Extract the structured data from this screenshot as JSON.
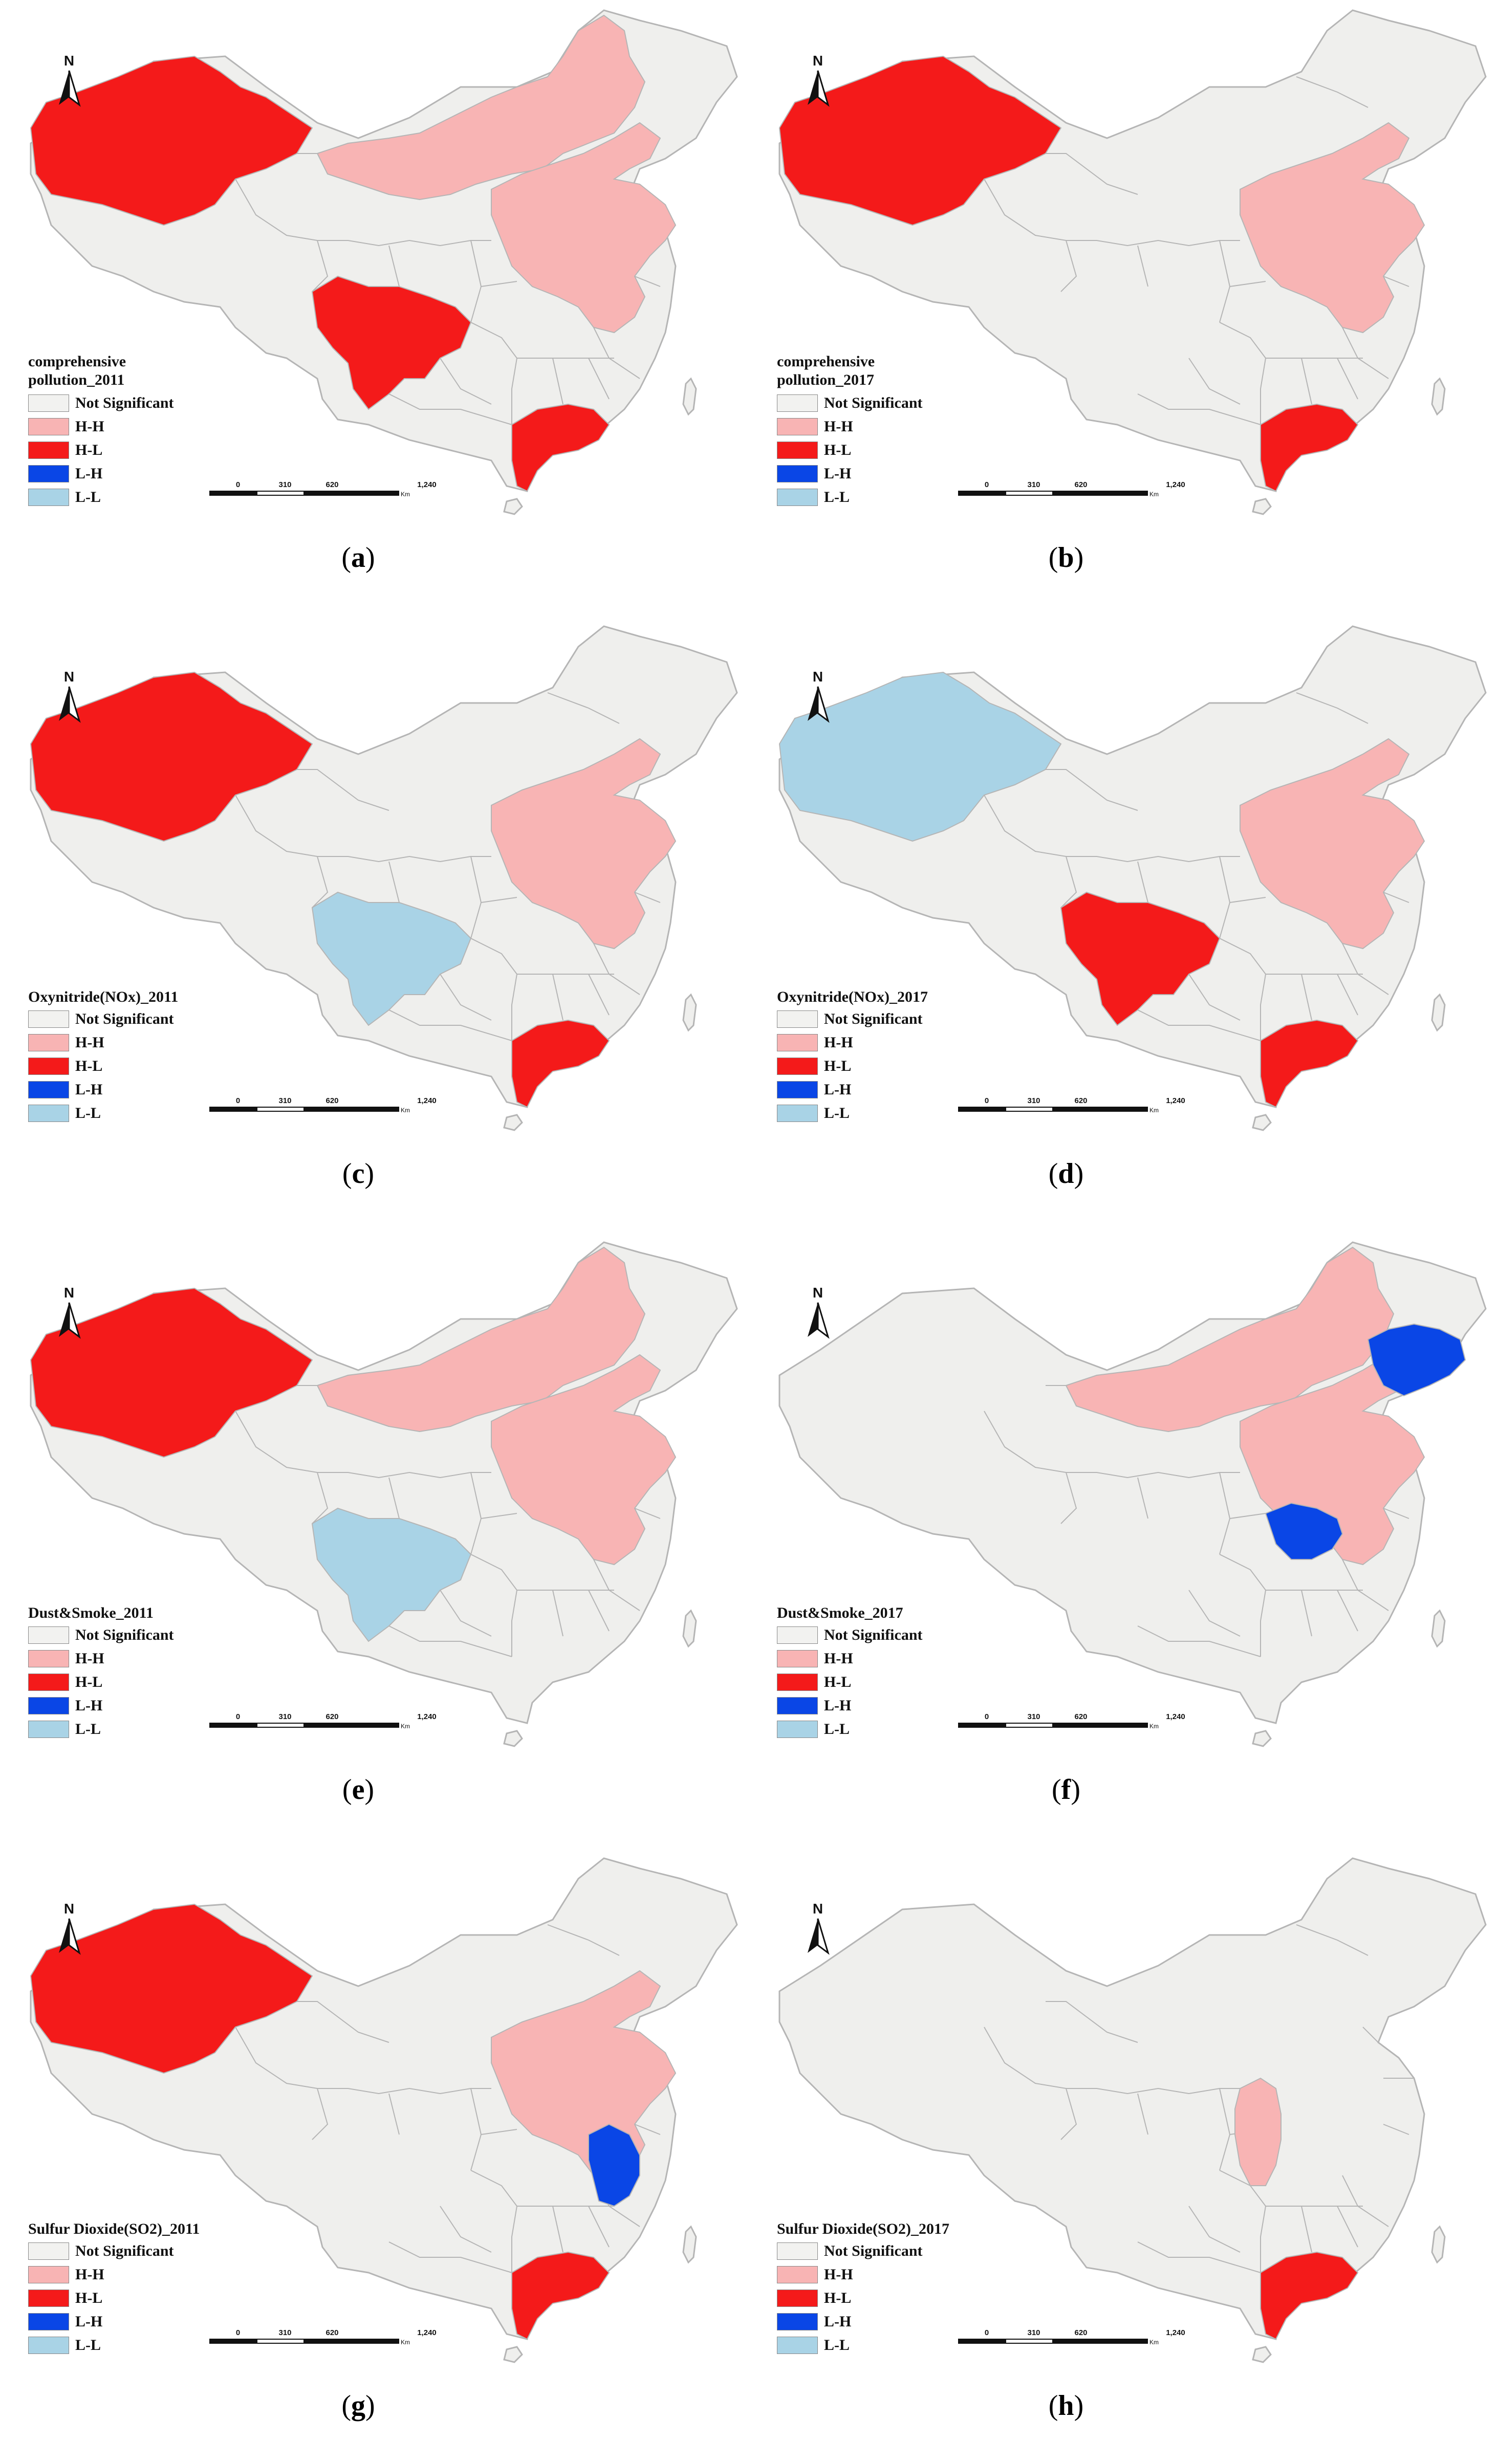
{
  "legend_classes": [
    {
      "key": "ns",
      "label": "Not Significant",
      "color": "#f2f2f0"
    },
    {
      "key": "hh",
      "label": "H-H",
      "color": "#f8b4b4"
    },
    {
      "key": "hl",
      "label": "H-L",
      "color": "#f41a1a"
    },
    {
      "key": "lh",
      "label": "L-H",
      "color": "#0a46e6"
    },
    {
      "key": "ll",
      "label": "L-L",
      "color": "#a9d3e6"
    }
  ],
  "base_color": "#efefed",
  "border_color": "#b5b5b5",
  "north_label": "N",
  "scale_ticks": [
    "0",
    "310",
    "620",
    "1,240"
  ],
  "scale_unit": "Km",
  "panels": [
    {
      "id": "a",
      "caption": "a",
      "title_lines": [
        "comprehensive",
        "pollution_2011"
      ],
      "regions": {
        "xinjiang": "hl",
        "inner_mongolia": "hh",
        "north_china": "hh",
        "sichuan": "hl",
        "guangdong": "hl"
      }
    },
    {
      "id": "b",
      "caption": "b",
      "title_lines": [
        "comprehensive",
        "pollution_2017"
      ],
      "regions": {
        "xinjiang": "hl",
        "north_china": "hh",
        "guangdong": "hl"
      }
    },
    {
      "id": "c",
      "caption": "c",
      "title_lines": [
        "Oxynitride(NOx)_2011"
      ],
      "regions": {
        "xinjiang": "hl",
        "north_china": "hh",
        "sichuan": "ll",
        "guangdong": "hl"
      }
    },
    {
      "id": "d",
      "caption": "d",
      "title_lines": [
        "Oxynitride(NOx)_2017"
      ],
      "regions": {
        "xinjiang": "ll",
        "north_china": "hh",
        "sichuan": "hl",
        "guangdong": "hl"
      }
    },
    {
      "id": "e",
      "caption": "e",
      "title_lines": [
        "Dust&Smoke_2011"
      ],
      "regions": {
        "xinjiang": "hl",
        "inner_mongolia": "hh",
        "north_china": "hh",
        "sichuan": "ll"
      }
    },
    {
      "id": "f",
      "caption": "f",
      "title_lines": [
        "Dust&Smoke_2017"
      ],
      "regions": {
        "inner_mongolia": "hh",
        "north_china": "hh",
        "jilin": "lh",
        "henan": "lh"
      }
    },
    {
      "id": "g",
      "caption": "g",
      "title_lines": [
        "Sulfur Dioxide(SO2)_2011"
      ],
      "regions": {
        "xinjiang": "hl",
        "north_china": "hh",
        "anhui": "lh",
        "guangdong": "hl"
      }
    },
    {
      "id": "h",
      "caption": "h",
      "title_lines": [
        "Sulfur Dioxide(SO2)_2017"
      ],
      "regions": {
        "shanxi": "hh",
        "guangdong": "hl"
      }
    }
  ]
}
